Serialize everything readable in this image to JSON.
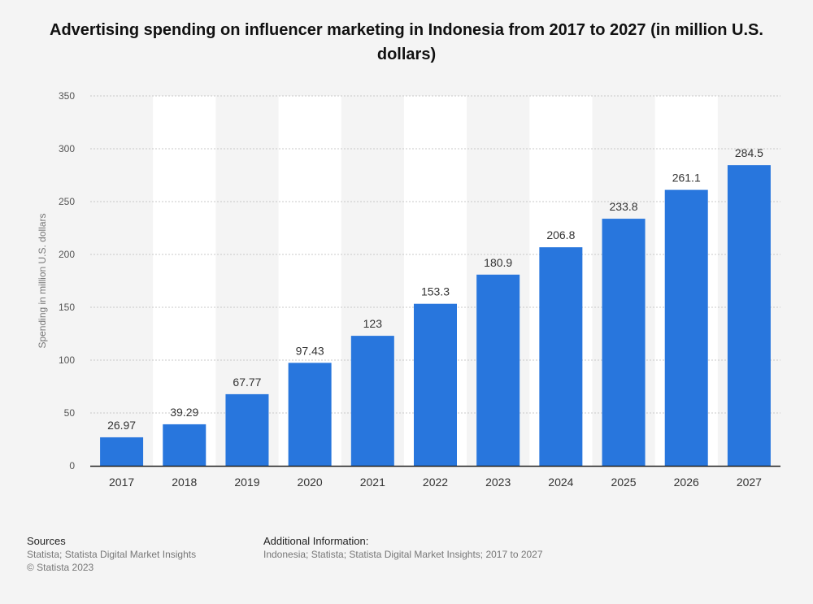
{
  "chart_data": {
    "type": "bar",
    "title": "Advertising spending on influencer marketing in Indonesia from 2017 to 2027 (in million U.S. dollars)",
    "xlabel": "",
    "ylabel": "Spending in million U.S. dollars",
    "ylim": [
      0,
      350
    ],
    "yticks": [
      0,
      50,
      100,
      150,
      200,
      250,
      300,
      350
    ],
    "categories": [
      "2017",
      "2018",
      "2019",
      "2020",
      "2021",
      "2022",
      "2023",
      "2024",
      "2025",
      "2026",
      "2027"
    ],
    "values": [
      26.97,
      39.29,
      67.77,
      97.43,
      123,
      153.3,
      180.9,
      206.8,
      233.8,
      261.1,
      284.5
    ],
    "value_labels": [
      "26.97",
      "39.29",
      "67.77",
      "97.43",
      "123",
      "153.3",
      "180.9",
      "206.8",
      "233.8",
      "261.1",
      "284.5"
    ],
    "bar_color": "#2876dd",
    "grid": true
  },
  "footer": {
    "sources_heading": "Sources",
    "sources_lines": [
      "Statista; Statista Digital Market Insights",
      "© Statista 2023"
    ],
    "additional_heading": "Additional Information:",
    "additional_text": "Indonesia; Statista; Statista Digital Market Insights; 2017 to 2027"
  }
}
